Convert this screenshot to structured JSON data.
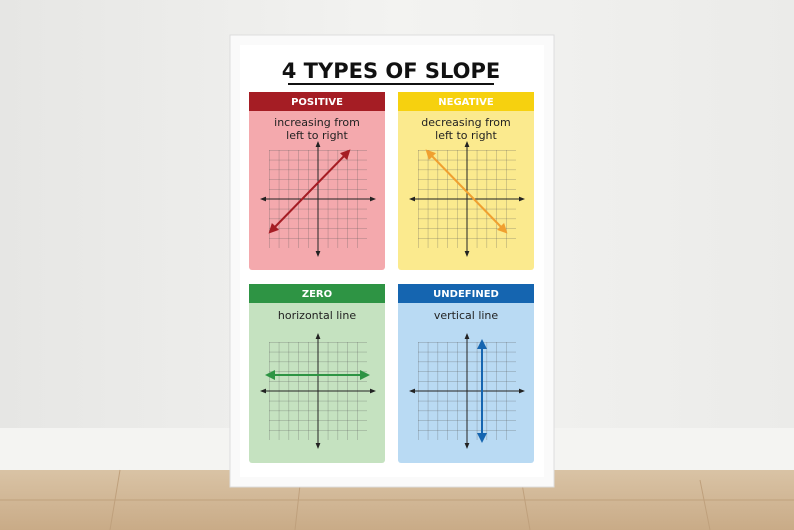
{
  "poster": {
    "title": "4 TYPES OF SLOPE",
    "cards": [
      {
        "heading": "POSITIVE",
        "description": [
          "increasing from",
          "left to right"
        ]
      },
      {
        "heading": "NEGATIVE",
        "description": [
          "decreasing from",
          "left to right"
        ]
      },
      {
        "heading": "ZERO",
        "description": [
          "horizontal line"
        ]
      },
      {
        "heading": "UNDEFINED",
        "description": [
          "vertical line"
        ]
      }
    ]
  }
}
